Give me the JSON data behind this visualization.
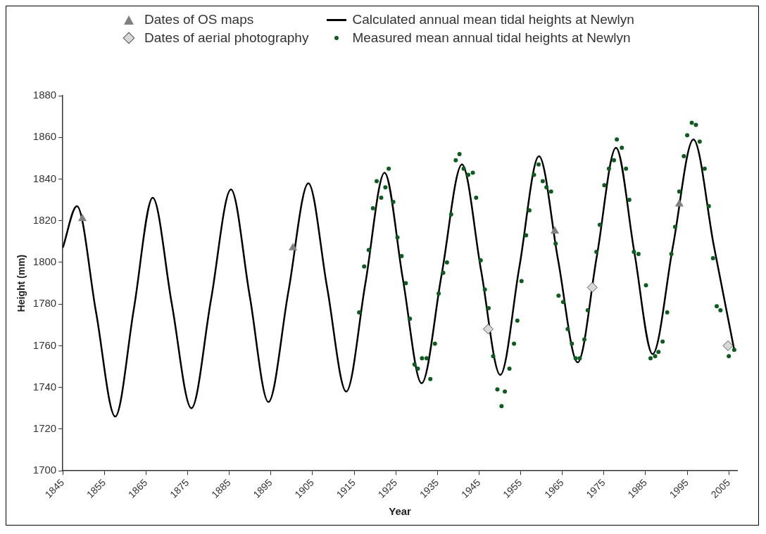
{
  "chart_data": {
    "type": "scatter",
    "xlabel": "Year",
    "ylabel": "Height (mm)",
    "xlim": [
      1845,
      2007
    ],
    "xticks": [
      1845,
      1855,
      1865,
      1875,
      1885,
      1895,
      1905,
      1915,
      1925,
      1935,
      1945,
      1955,
      1965,
      1975,
      1985,
      1995,
      2005
    ],
    "ylim": [
      1700,
      1880
    ],
    "yticks": [
      1700,
      1720,
      1740,
      1760,
      1780,
      1800,
      1820,
      1840,
      1860,
      1880
    ],
    "grid": false,
    "legend": "top",
    "series": [
      {
        "name": "Dates of OS maps",
        "type": "scatter",
        "marker": "triangle",
        "color": "#808080",
        "x": [
          1849.7,
          1900.3,
          1963.2,
          1993.1
        ],
        "values": [
          1821,
          1807,
          1815,
          1828
        ]
      },
      {
        "name": "Dates of aerial photography",
        "type": "scatter",
        "marker": "diamond",
        "color": "#d9d9d9",
        "x": [
          1947.2,
          1972.2,
          2004.8
        ],
        "values": [
          1768,
          1788,
          1760
        ]
      },
      {
        "name": "Calculated annual mean tidal heights at Newlyn",
        "type": "line",
        "marker": "none",
        "color": "#000000",
        "x": [
          1845,
          1848.4,
          1853,
          1857.6,
          1862.1,
          1866.6,
          1871.2,
          1875.9,
          1880.6,
          1885.4,
          1889.9,
          1894.4,
          1899.2,
          1904,
          1908.5,
          1913.1,
          1917.7,
          1922.3,
          1926.7,
          1931.2,
          1936,
          1940.9,
          1945.5,
          1950.1,
          1954.7,
          1959.4,
          1964,
          1968.7,
          1973.3,
          1977.9,
          1982.3,
          1986.7,
          1991.6,
          1996.5,
          2001.4,
          2006.3
        ],
        "values": [
          1807,
          1827,
          1776,
          1726,
          1778,
          1831,
          1780,
          1730,
          1782,
          1835,
          1784,
          1733,
          1786,
          1838,
          1788,
          1738,
          1790,
          1843,
          1792,
          1742,
          1794,
          1847,
          1796,
          1746,
          1798,
          1851,
          1801,
          1752,
          1803,
          1855,
          1805,
          1756,
          1808,
          1859,
          1808,
          1758
        ]
      },
      {
        "name": "Measured mean annual tidal heights at Newlyn",
        "type": "scatter",
        "marker": "circle",
        "color": "#0b5d1e",
        "x": [
          1916.2,
          1917.4,
          1918.5,
          1919.5,
          1920.4,
          1921.5,
          1922.5,
          1923.3,
          1924.4,
          1925.4,
          1926.4,
          1927.4,
          1928.4,
          1929.5,
          1930.3,
          1931.3,
          1932.4,
          1933.3,
          1934.4,
          1935.3,
          1936.4,
          1937.3,
          1938.3,
          1939.4,
          1940.3,
          1941.3,
          1942.4,
          1943.5,
          1944.3,
          1945.4,
          1946.4,
          1947.3,
          1948.4,
          1949.4,
          1950.4,
          1951.2,
          1952.3,
          1953.4,
          1954.2,
          1955.2,
          1956.3,
          1957.1,
          1958.2,
          1959.3,
          1960.3,
          1961.2,
          1962.3,
          1963.4,
          1964.1,
          1965.2,
          1966.3,
          1967.3,
          1968.2,
          1969.2,
          1970.3,
          1971.1,
          1973.2,
          1974,
          1975.1,
          1976.2,
          1977.4,
          1978.1,
          1979.3,
          1980.3,
          1981.1,
          1982.2,
          1983.3,
          1985.1,
          1986.2,
          1987.3,
          1988.1,
          1989.1,
          1990.2,
          1991.2,
          1992.1,
          1993.1,
          1994.2,
          1995,
          1996.1,
          1997.1,
          1998,
          1999.2,
          2000.2,
          2001.2,
          2002.1,
          2003,
          2005,
          2006.3
        ],
        "values": [
          1776,
          1798,
          1806,
          1826,
          1839,
          1831,
          1836,
          1845,
          1829,
          1812,
          1803,
          1790,
          1773,
          1751,
          1749,
          1754,
          1754,
          1744,
          1761,
          1785,
          1795,
          1800,
          1823,
          1849,
          1852,
          1845,
          1842,
          1843,
          1831,
          1801,
          1787,
          1778,
          1755,
          1739,
          1731,
          1738,
          1749,
          1761,
          1772,
          1791,
          1813,
          1825,
          1842,
          1847,
          1839,
          1836,
          1834,
          1809,
          1784,
          1781,
          1768,
          1761,
          1754,
          1754,
          1763,
          1777,
          1805,
          1818,
          1837,
          1845,
          1849,
          1859,
          1855,
          1845,
          1830,
          1805,
          1804,
          1789,
          1754,
          1755,
          1757,
          1762,
          1776,
          1804,
          1817,
          1834,
          1851,
          1861,
          1867,
          1866,
          1858,
          1845,
          1827,
          1802,
          1779,
          1777,
          1755,
          1758
        ]
      }
    ]
  }
}
